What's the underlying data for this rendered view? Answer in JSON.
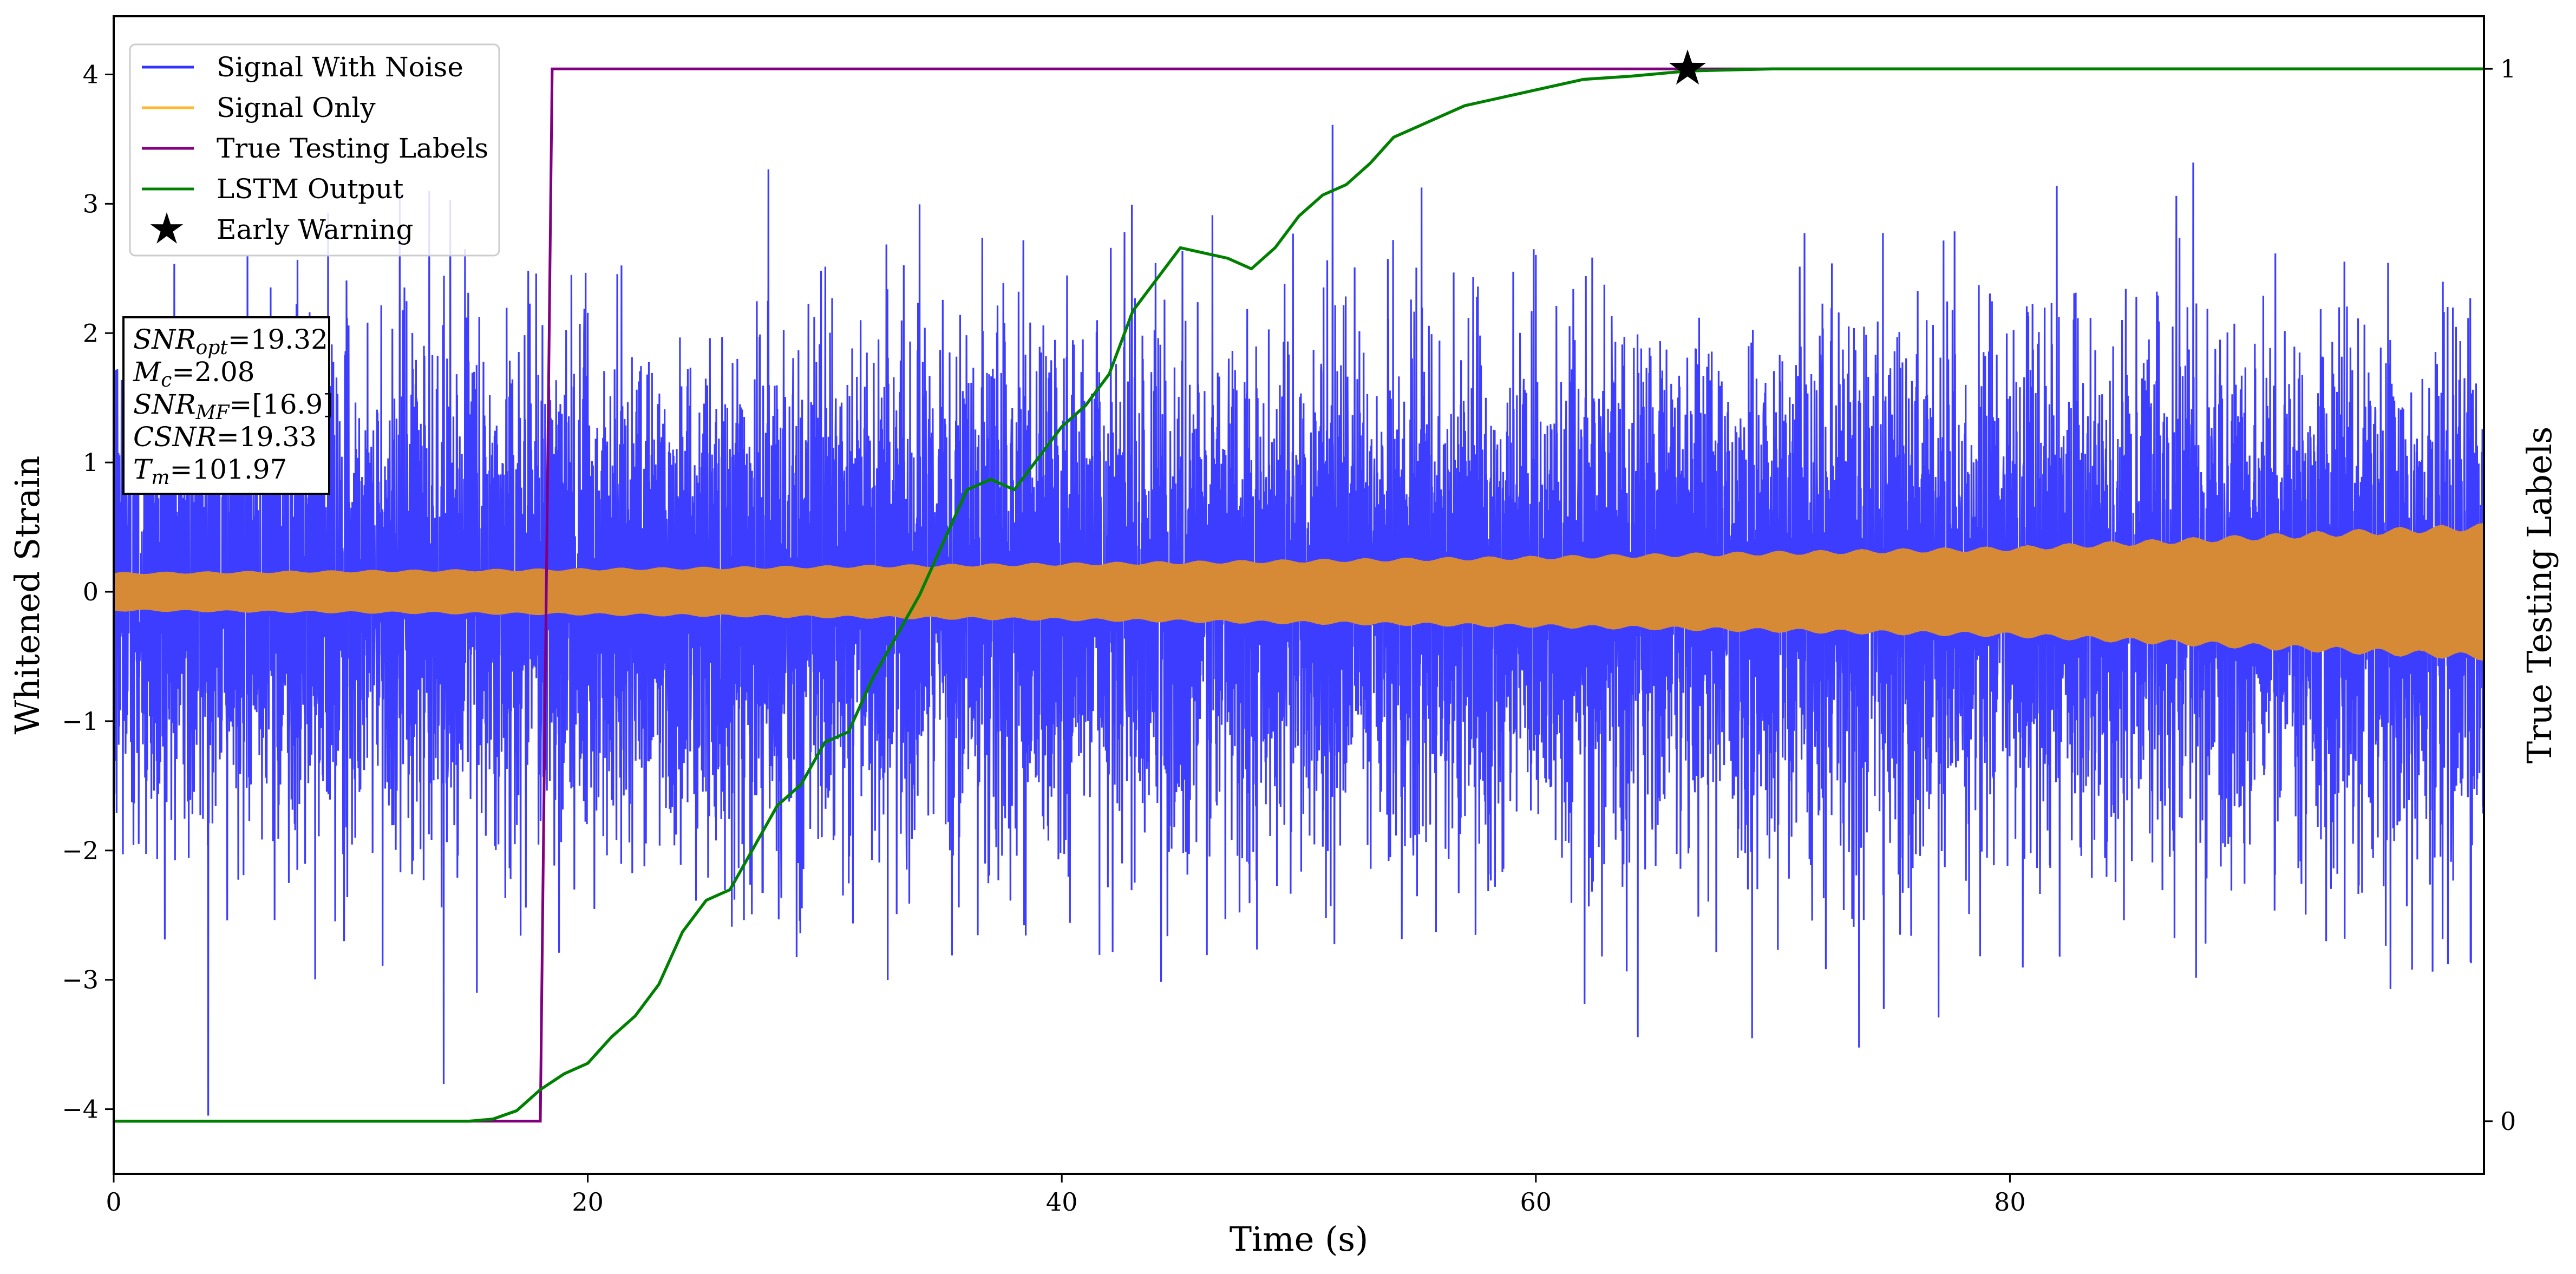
{
  "chart_data": {
    "type": "line",
    "xlabel": "Time (s)",
    "ylabel": "Whitened Strain",
    "y2label": "True Testing Labels",
    "xlim": [
      0,
      100
    ],
    "ylim": [
      -4.5,
      4.45
    ],
    "y2lim": [
      -0.05,
      1.05
    ],
    "x_ticks": [
      0,
      20,
      40,
      60,
      80
    ],
    "x_tick_labels": [
      "0",
      "20",
      "40",
      "60",
      "80"
    ],
    "y_ticks": [
      -4,
      -3,
      -2,
      -1,
      0,
      1,
      2,
      3,
      4
    ],
    "y_tick_labels": [
      "−4",
      "−3",
      "−2",
      "−1",
      "0",
      "1",
      "2",
      "3",
      "4"
    ],
    "y2_ticks": [
      0,
      1
    ],
    "y2_tick_labels": [
      "0",
      "1"
    ],
    "grid": false,
    "legend": {
      "position": "top-left",
      "entries": [
        {
          "label": "Signal With Noise",
          "color": "#3333ff",
          "marker": "line"
        },
        {
          "label": "Signal Only",
          "color": "#ffb833",
          "marker": "line"
        },
        {
          "label": "True Testing Labels",
          "color": "#800080",
          "marker": "line"
        },
        {
          "label": "LSTM Output",
          "color": "#008000",
          "marker": "line"
        },
        {
          "label": "Early Warning",
          "color": "#000000",
          "marker": "star"
        }
      ]
    },
    "parameters_box": {
      "position": "left",
      "lines": [
        {
          "symbol": "SNR",
          "sub": "opt",
          "value": "=19.32"
        },
        {
          "symbol": "M",
          "sub": "c",
          "value": "=2.08"
        },
        {
          "symbol": "SNR",
          "sub": "MF",
          "value": "=[16.9]"
        },
        {
          "symbol": "CSNR",
          "sub": "",
          "value": "=19.33"
        },
        {
          "symbol": "T",
          "sub": "m",
          "value": "=101.97"
        }
      ]
    },
    "series": [
      {
        "name": "Signal With Noise",
        "axis": "left",
        "color": "#3333ff",
        "style": "dense-noise",
        "noise_band": {
          "typical": 1.3,
          "peak_range": [
            -4.05,
            3.85
          ]
        },
        "x": [
          0,
          100
        ]
      },
      {
        "name": "Signal Only",
        "axis": "left",
        "color": "#d68a35",
        "style": "oscillation-envelope",
        "x": [
          0,
          20,
          40,
          60,
          80,
          100
        ],
        "amplitude": [
          0.14,
          0.17,
          0.21,
          0.26,
          0.33,
          0.5
        ]
      },
      {
        "name": "True Testing Labels",
        "axis": "right",
        "color": "#800080",
        "x": [
          0,
          18,
          18.5,
          100
        ],
        "y": [
          0,
          0,
          1,
          1
        ]
      },
      {
        "name": "LSTM Output",
        "axis": "right",
        "color": "#008000",
        "x": [
          0,
          15,
          16,
          17,
          18,
          19,
          20,
          21,
          22,
          23,
          24,
          25,
          26,
          27,
          28,
          29,
          30,
          31,
          32,
          33,
          34,
          35,
          36,
          37,
          38,
          39,
          40,
          41,
          42,
          43,
          44,
          45,
          46,
          47,
          48,
          49,
          50,
          51,
          52,
          53,
          54,
          55,
          56,
          57,
          58,
          60,
          62,
          64,
          66.4,
          70,
          80,
          90,
          100
        ],
        "y": [
          0,
          0,
          0.002,
          0.01,
          0.03,
          0.045,
          0.055,
          0.08,
          0.1,
          0.13,
          0.18,
          0.21,
          0.22,
          0.26,
          0.3,
          0.32,
          0.36,
          0.37,
          0.42,
          0.46,
          0.5,
          0.55,
          0.6,
          0.61,
          0.6,
          0.63,
          0.66,
          0.68,
          0.71,
          0.77,
          0.8,
          0.83,
          0.825,
          0.82,
          0.81,
          0.83,
          0.86,
          0.88,
          0.89,
          0.91,
          0.935,
          0.945,
          0.955,
          0.965,
          0.97,
          0.98,
          0.99,
          0.993,
          0.998,
          1.0,
          1.0,
          1.0,
          1.0
        ]
      },
      {
        "name": "Early Warning",
        "axis": "right",
        "color": "#000000",
        "style": "marker",
        "x": [
          66.4
        ],
        "y": [
          1.0
        ]
      }
    ]
  }
}
